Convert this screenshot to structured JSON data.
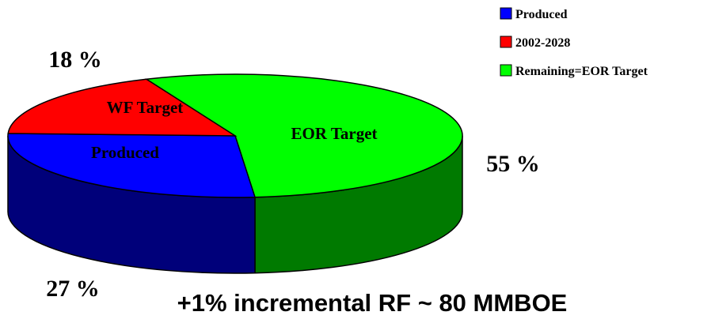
{
  "chart_data": {
    "type": "pie",
    "style": "3d",
    "slices": [
      {
        "legend": "Produced",
        "inner_label": "Produced",
        "value": 27,
        "value_label": "27 %",
        "color": "#0000ff",
        "side_color": "#00007a"
      },
      {
        "legend": "2002-2028",
        "inner_label": "WF Target",
        "value": 18,
        "value_label": "18 %",
        "color": "#ff0000",
        "side_color": "#a00000"
      },
      {
        "legend": "Remaining=EOR Target",
        "inner_label": "EOR Target",
        "value": 55,
        "value_label": "55 %",
        "color": "#00ff00",
        "side_color": "#007a00"
      }
    ],
    "legend_position": "top-right"
  },
  "footer": "+1% incremental RF ~ 80 MMBOE"
}
